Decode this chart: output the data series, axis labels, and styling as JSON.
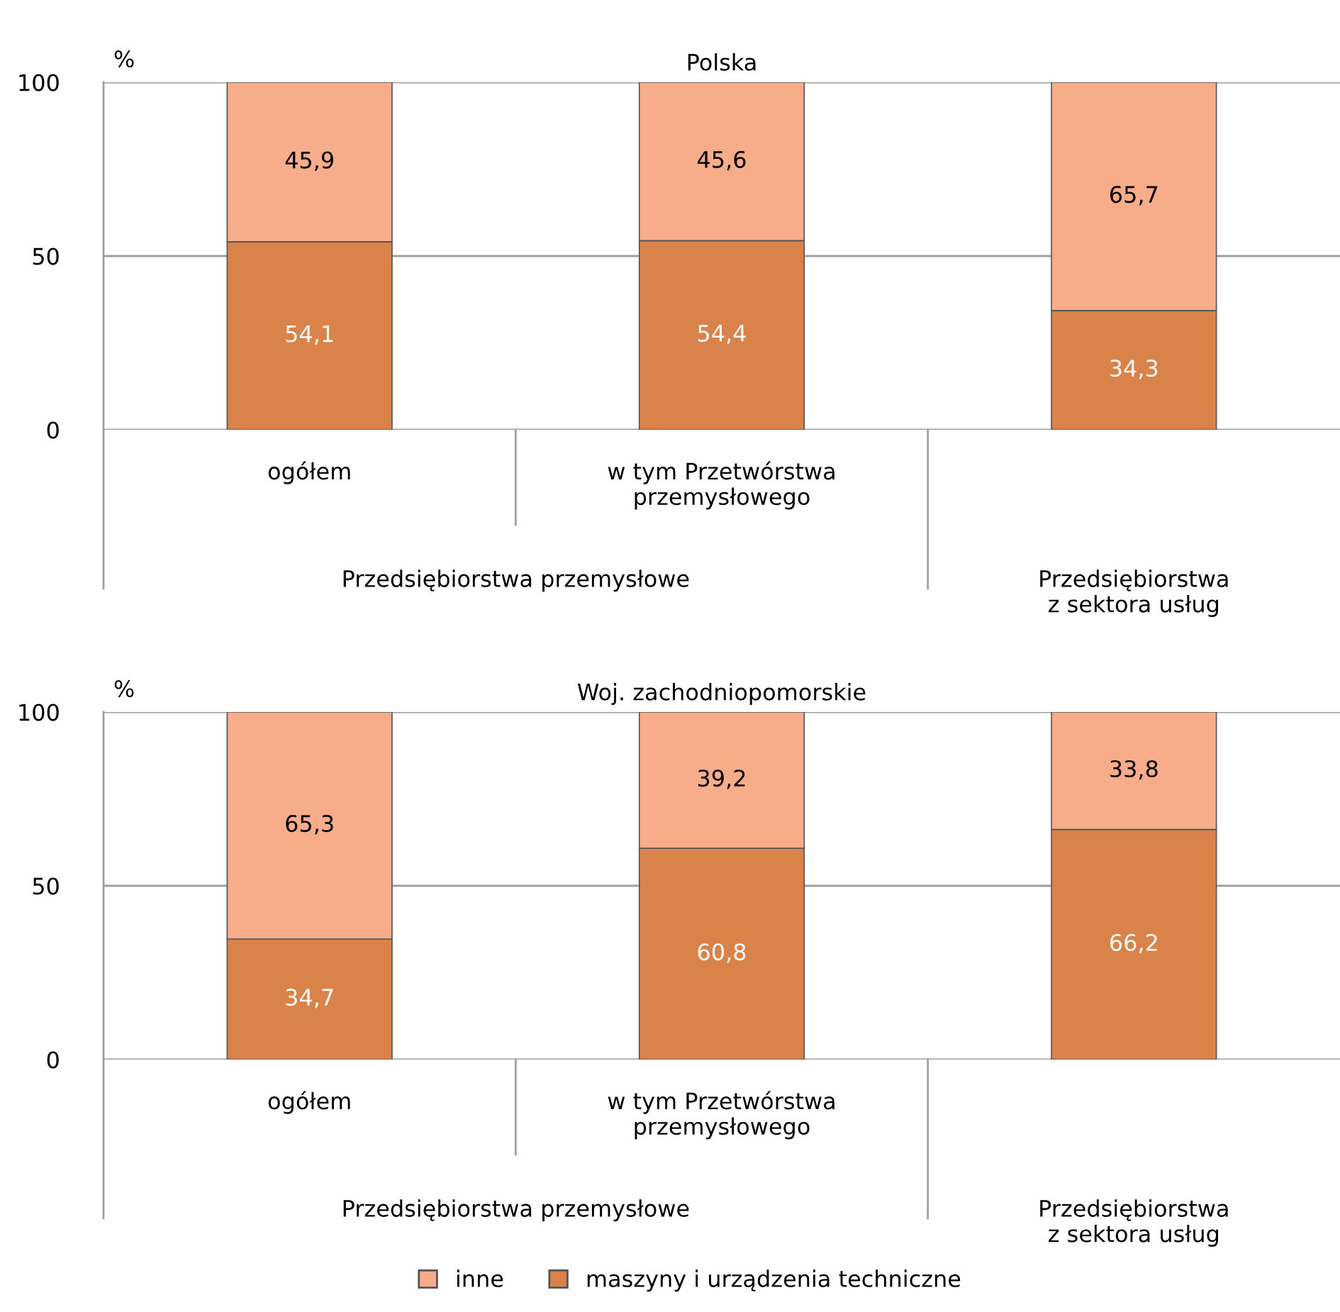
{
  "chart_data": [
    {
      "type": "bar",
      "title": "Polska",
      "ylabel": "%",
      "stacked": true,
      "categories": [
        "ogółem",
        "w tym Przetwórstwa\nprzemysłowego",
        null
      ],
      "series": [
        {
          "name": "maszyny i urządzenia techniczne",
          "color": "#d9824a",
          "values": [
            54.1,
            54.4,
            34.3
          ],
          "value_labels": [
            "54,1",
            "54,4",
            "34,3"
          ]
        },
        {
          "name": "inne",
          "color": "#f8ad8a",
          "values": [
            45.9,
            45.6,
            65.7
          ],
          "value_labels": [
            "45,9",
            "45,6",
            "65,7"
          ]
        }
      ],
      "annotations": [
        "Przedsiębiorstwa przemysłowe",
        "Przedsiębiorstwa\nz sektora usług"
      ],
      "ylim": [
        0,
        100
      ],
      "yticks": [
        0,
        50,
        100
      ],
      "grid": "y",
      "legend": "bottom"
    },
    {
      "type": "bar",
      "title": "Woj. zachodniopomorskie",
      "ylabel": "%",
      "stacked": true,
      "categories": [
        "ogółem",
        "w tym Przetwórstwa\nprzemysłowego",
        null
      ],
      "series": [
        {
          "name": "maszyny i urządzenia techniczne",
          "color": "#d9824a",
          "values": [
            34.7,
            60.8,
            66.2
          ],
          "value_labels": [
            "34,7",
            "60,8",
            "66,2"
          ]
        },
        {
          "name": "inne",
          "color": "#f8ad8a",
          "values": [
            65.3,
            39.2,
            33.8
          ],
          "value_labels": [
            "65,3",
            "39,2",
            "33,8"
          ]
        }
      ],
      "annotations": [
        "Przedsiębiorstwa przemysłowe",
        "Przedsiębiorstwa\nz sektora usług"
      ],
      "ylim": [
        0,
        100
      ],
      "yticks": [
        0,
        50,
        100
      ],
      "grid": "y",
      "legend": "bottom"
    }
  ]
}
